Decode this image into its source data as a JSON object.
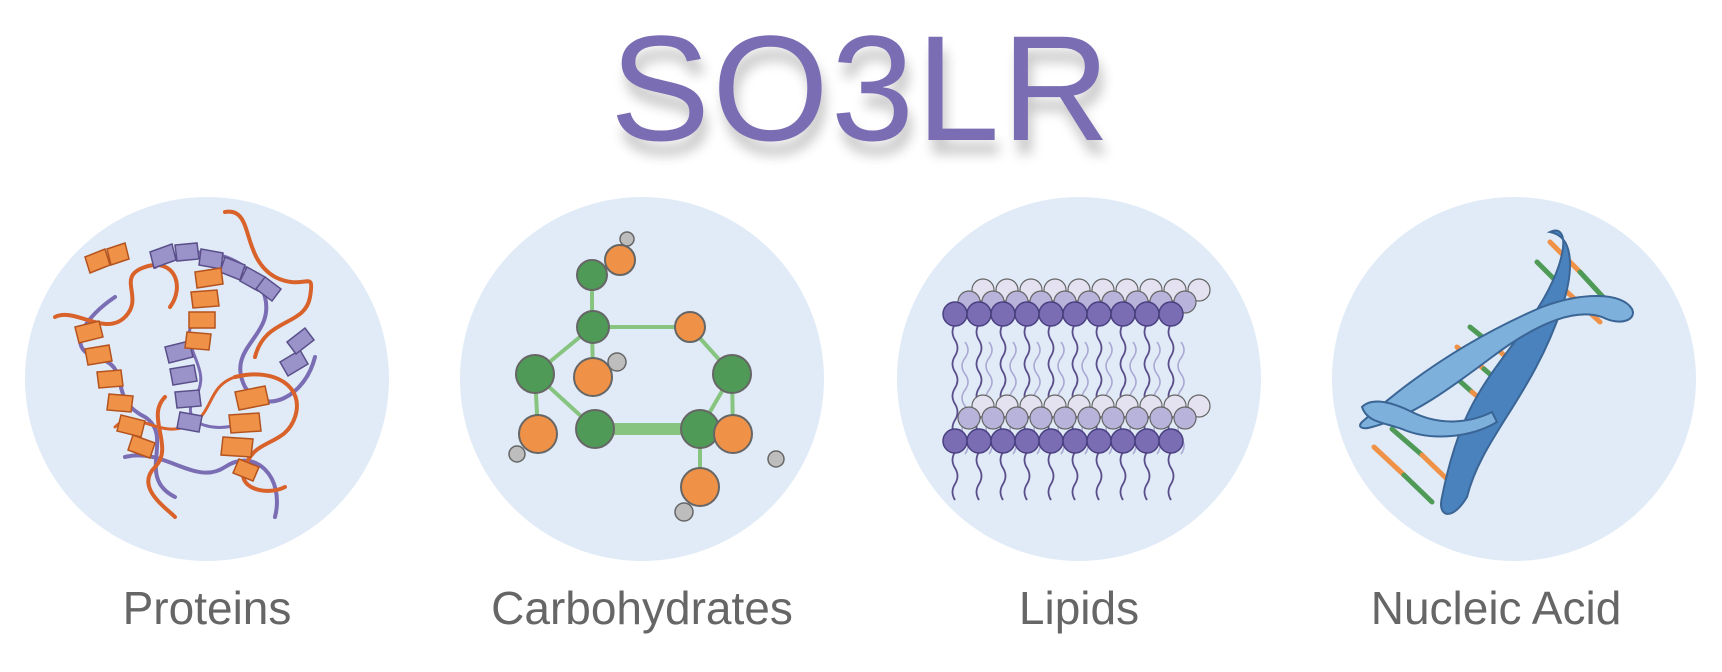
{
  "title": "SO3LR",
  "colors": {
    "title": "#7b6db3",
    "circle_fill": "#e0ebf7",
    "label_text": "#666666",
    "orange": "#ef9147",
    "green": "#4f9a57",
    "purple": "#7b6db3",
    "lavender": "#9a93c9",
    "blue": "#4a82bd",
    "light_blue": "#7eb0dc"
  },
  "categories": [
    {
      "id": "proteins",
      "label": "Proteins",
      "icon": "protein-ribbon-icon"
    },
    {
      "id": "carbohydrates",
      "label": "Carbohydrates",
      "icon": "carbohydrate-molecule-icon"
    },
    {
      "id": "lipids",
      "label": "Lipids",
      "icon": "lipid-bilayer-icon"
    },
    {
      "id": "nucleic_acid",
      "label": "Nucleic Acid",
      "icon": "dna-double-helix-icon"
    }
  ]
}
